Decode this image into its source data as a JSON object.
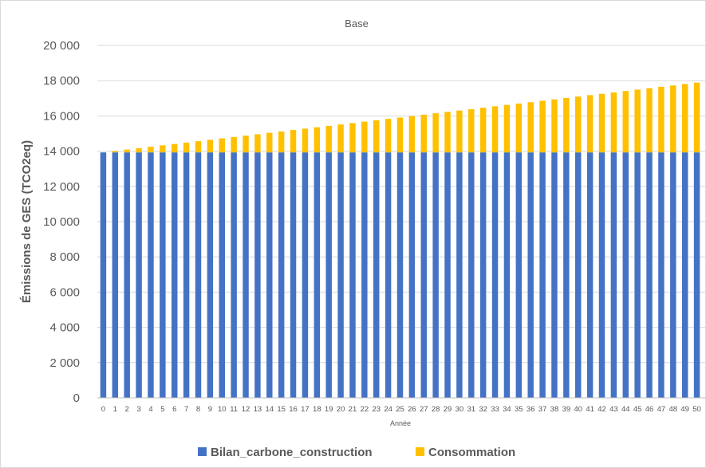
{
  "chart_data": {
    "type": "bar",
    "stacked": true,
    "title": "Base",
    "xlabel": "Année",
    "ylabel": "Émissions de GES (TCO2eq)",
    "ylim": [
      0,
      20000
    ],
    "yticks": [
      0,
      2000,
      4000,
      6000,
      8000,
      10000,
      12000,
      14000,
      16000,
      18000,
      20000
    ],
    "ytick_labels": [
      "0",
      "2 000",
      "4 000",
      "6 000",
      "8 000",
      "10 000",
      "12 000",
      "14 000",
      "16 000",
      "18 000",
      "20 000"
    ],
    "grid": true,
    "legend_position": "bottom",
    "categories": [
      "0",
      "1",
      "2",
      "3",
      "4",
      "5",
      "6",
      "7",
      "8",
      "9",
      "10",
      "11",
      "12",
      "13",
      "14",
      "15",
      "16",
      "17",
      "18",
      "19",
      "20",
      "21",
      "22",
      "23",
      "24",
      "25",
      "26",
      "27",
      "28",
      "29",
      "30",
      "31",
      "32",
      "33",
      "34",
      "35",
      "36",
      "37",
      "38",
      "39",
      "40",
      "41",
      "42",
      "43",
      "44",
      "45",
      "46",
      "47",
      "48",
      "49",
      "50"
    ],
    "series": [
      {
        "name": "Bilan_carbone_construction",
        "color": "#4472c4",
        "values": [
          13930,
          13930,
          13930,
          13930,
          13930,
          13930,
          13930,
          13930,
          13930,
          13930,
          13930,
          13930,
          13930,
          13930,
          13930,
          13930,
          13930,
          13930,
          13930,
          13930,
          13930,
          13930,
          13930,
          13930,
          13930,
          13930,
          13930,
          13930,
          13930,
          13930,
          13930,
          13930,
          13930,
          13930,
          13930,
          13930,
          13930,
          13930,
          13930,
          13930,
          13930,
          13930,
          13930,
          13930,
          13930,
          13930,
          13930,
          13930,
          13930,
          13930,
          13930
        ]
      },
      {
        "name": "Consommation",
        "color": "#ffc000",
        "values": [
          0,
          80,
          160,
          240,
          320,
          400,
          475,
          555,
          635,
          715,
          795,
          875,
          950,
          1030,
          1110,
          1190,
          1270,
          1350,
          1425,
          1505,
          1585,
          1665,
          1745,
          1825,
          1900,
          1980,
          2060,
          2140,
          2220,
          2300,
          2375,
          2455,
          2535,
          2615,
          2695,
          2775,
          2850,
          2930,
          3010,
          3090,
          3170,
          3250,
          3325,
          3405,
          3485,
          3565,
          3645,
          3725,
          3800,
          3880,
          3960
        ]
      }
    ]
  }
}
